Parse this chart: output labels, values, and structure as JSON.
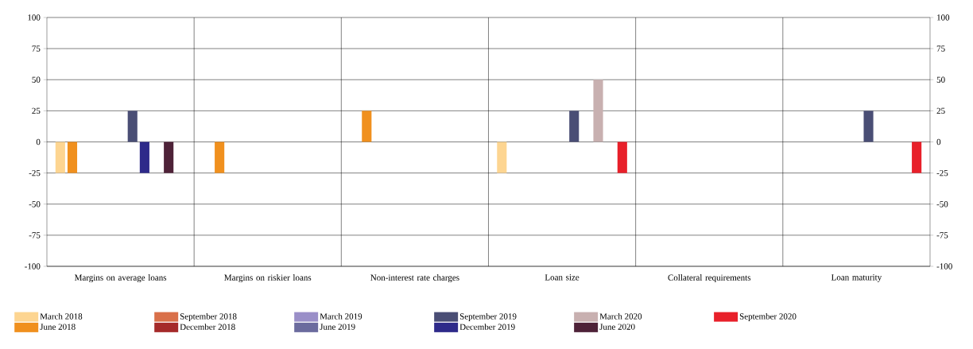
{
  "chart_data": {
    "type": "bar",
    "categories": [
      "Margins on average loans",
      "Margins on riskier loans",
      "Non-interest rate charges",
      "Loan size",
      "Collateral requirements",
      "Loan maturity"
    ],
    "series": [
      {
        "name": "March 2018",
        "color": "#fdd591",
        "values": [
          -25,
          0,
          0,
          -25,
          0,
          0
        ]
      },
      {
        "name": "June 2018",
        "color": "#f0901e",
        "values": [
          -25,
          -25,
          25,
          0,
          0,
          0
        ]
      },
      {
        "name": "September 2018",
        "color": "#d9704a",
        "values": [
          0,
          0,
          0,
          0,
          0,
          0
        ]
      },
      {
        "name": "December 2018",
        "color": "#a52a2a",
        "values": [
          0,
          0,
          0,
          0,
          0,
          0
        ]
      },
      {
        "name": "March 2019",
        "color": "#9a8fc8",
        "values": [
          0,
          0,
          0,
          0,
          0,
          0
        ]
      },
      {
        "name": "June 2019",
        "color": "#6b6b9e",
        "values": [
          0,
          0,
          0,
          0,
          0,
          0
        ]
      },
      {
        "name": "September 2019",
        "color": "#4a4e75",
        "values": [
          25,
          0,
          0,
          25,
          0,
          25
        ]
      },
      {
        "name": "December 2019",
        "color": "#2e2a8a",
        "values": [
          -25,
          0,
          0,
          0,
          0,
          0
        ]
      },
      {
        "name": "March 2020",
        "color": "#c8b0b0",
        "values": [
          0,
          0,
          0,
          50,
          0,
          0
        ]
      },
      {
        "name": "June 2020",
        "color": "#4e2238",
        "values": [
          -25,
          0,
          0,
          0,
          0,
          0
        ]
      },
      {
        "name": "September 2020",
        "color": "#e8202a",
        "values": [
          0,
          0,
          0,
          -25,
          0,
          -25
        ]
      }
    ],
    "ylim": [
      -100,
      100
    ],
    "yticks": [
      -100,
      -75,
      -50,
      -25,
      0,
      25,
      50,
      75,
      100
    ],
    "y2lim": [
      -100,
      100
    ],
    "y2ticks": [
      -100,
      -75,
      -50,
      -25,
      0,
      25,
      50,
      75,
      100
    ],
    "grid": true,
    "legend": "bottom"
  }
}
